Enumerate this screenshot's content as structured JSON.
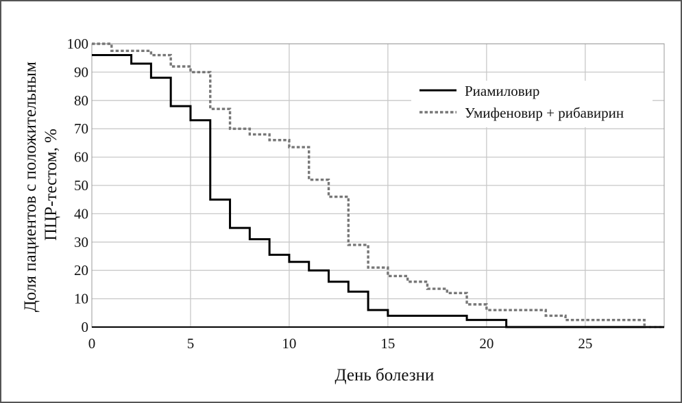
{
  "chart_data": {
    "type": "line",
    "step": true,
    "title": "",
    "xlabel": "День болезни",
    "ylabel": "Доля пациентов с положительным ПЦР-тестом, %",
    "ylabel_lines": [
      "Доля пациентов с положительным",
      "ПЦР-тестом, %"
    ],
    "xlim": [
      0,
      29
    ],
    "ylim": [
      0,
      100
    ],
    "xticks": [
      0,
      5,
      10,
      15,
      20,
      25
    ],
    "yticks": [
      0,
      10,
      20,
      30,
      40,
      50,
      60,
      70,
      80,
      90,
      100
    ],
    "grid": true,
    "legend_position": "top-right",
    "series": [
      {
        "name": "Риамиловир",
        "style": "solid",
        "color": "#000000",
        "points": [
          [
            0,
            96
          ],
          [
            2,
            93
          ],
          [
            3,
            88
          ],
          [
            4,
            78
          ],
          [
            5,
            73
          ],
          [
            6,
            45
          ],
          [
            7,
            35
          ],
          [
            8,
            31
          ],
          [
            9,
            25.5
          ],
          [
            10,
            23
          ],
          [
            11,
            20
          ],
          [
            12,
            16
          ],
          [
            13,
            12.5
          ],
          [
            14,
            6
          ],
          [
            15,
            4
          ],
          [
            19,
            2.5
          ],
          [
            21,
            0
          ],
          [
            29,
            0
          ]
        ]
      },
      {
        "name": "Умифеновир + рибавирин",
        "style": "dotted",
        "color": "#777777",
        "points": [
          [
            0,
            100
          ],
          [
            1,
            97.5
          ],
          [
            3,
            96
          ],
          [
            4,
            92
          ],
          [
            5,
            90
          ],
          [
            6,
            77
          ],
          [
            7,
            70
          ],
          [
            8,
            68
          ],
          [
            9,
            66
          ],
          [
            10,
            63.5
          ],
          [
            11,
            52
          ],
          [
            12,
            46
          ],
          [
            13,
            29
          ],
          [
            14,
            21
          ],
          [
            15,
            18
          ],
          [
            16,
            16
          ],
          [
            17,
            13.5
          ],
          [
            18,
            12
          ],
          [
            19,
            8
          ],
          [
            20,
            6
          ],
          [
            23,
            4
          ],
          [
            24,
            2.5
          ],
          [
            28,
            0
          ],
          [
            29,
            0
          ]
        ]
      }
    ]
  }
}
